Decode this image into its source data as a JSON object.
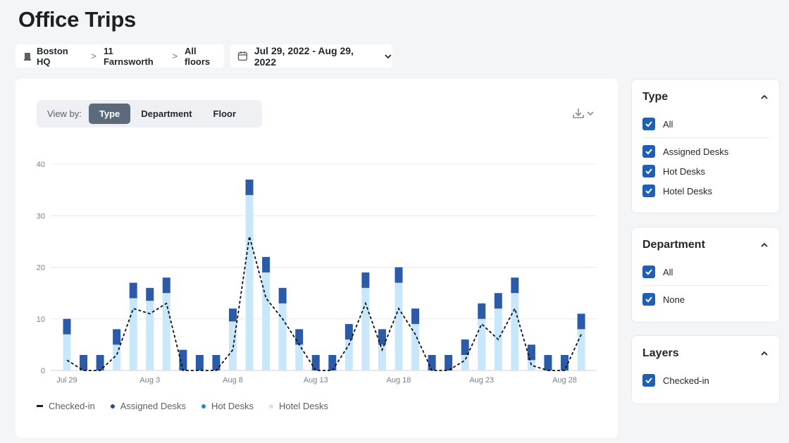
{
  "title": "Office Trips",
  "breadcrumb": [
    "Boston HQ",
    "11 Farnsworth",
    "All floors"
  ],
  "date_range": "Jul 29, 2022 - Aug 29, 2022",
  "view_by": {
    "label": "View by:",
    "options": [
      "Type",
      "Department",
      "Floor"
    ],
    "active": "Type"
  },
  "colors": {
    "assigned": "#2a5aa8",
    "hot": "#1b87d8",
    "hotel": "#c9e7fa",
    "line": "#111111",
    "checkbox": "#1f5fb4"
  },
  "chart_data": {
    "type": "bar",
    "stacked": true,
    "x": [
      "Jul 29",
      "Jul 30",
      "Jul 31",
      "Aug 1",
      "Aug 2",
      "Aug 3",
      "Aug 4",
      "Aug 5",
      "Aug 6",
      "Aug 7",
      "Aug 8",
      "Aug 9",
      "Aug 10",
      "Aug 11",
      "Aug 12",
      "Aug 13",
      "Aug 14",
      "Aug 15",
      "Aug 16",
      "Aug 17",
      "Aug 18",
      "Aug 19",
      "Aug 20",
      "Aug 21",
      "Aug 22",
      "Aug 23",
      "Aug 24",
      "Aug 25",
      "Aug 26",
      "Aug 27",
      "Aug 28",
      "Aug 29"
    ],
    "tick_labels": [
      "Jul 29",
      "Aug 3",
      "Aug 8",
      "Aug 13",
      "Aug 18",
      "Aug 23",
      "Aug 28"
    ],
    "y_ticks": [
      0,
      10,
      20,
      30,
      40
    ],
    "ylim": [
      0,
      40
    ],
    "grid": true,
    "legend_position": "bottom-left",
    "series": [
      {
        "name": "Hotel Desks",
        "color": "#c9e7fa",
        "values": [
          7,
          0,
          0,
          5,
          14,
          13.5,
          15,
          0,
          0,
          0,
          9.5,
          34,
          19,
          13,
          5,
          0,
          0,
          6,
          16,
          5,
          17,
          9,
          0,
          0,
          3,
          10,
          12,
          15,
          2,
          0,
          0,
          8
        ]
      },
      {
        "name": "Assigned Desks",
        "color": "#2a5aa8",
        "values": [
          3,
          3,
          3,
          3,
          3,
          2.5,
          3,
          4,
          3,
          3,
          2.5,
          3,
          3,
          3,
          3,
          3,
          3,
          3,
          3,
          3,
          3,
          3,
          3,
          3,
          3,
          3,
          3,
          3,
          3,
          3,
          3,
          3
        ]
      },
      {
        "name": "Hot Desks",
        "color": "#1b87d8",
        "values": [
          0,
          0,
          0,
          0,
          0,
          0,
          0,
          0,
          0,
          0,
          0,
          0,
          0,
          0,
          0,
          0,
          0,
          0,
          0,
          0,
          0,
          0,
          0,
          0,
          0,
          0,
          0,
          0,
          0,
          0,
          0,
          0
        ]
      },
      {
        "name": "Checked-in",
        "type": "line",
        "style": "dashed",
        "color": "#111111",
        "values": [
          2,
          0,
          0,
          3,
          12,
          11,
          13,
          0,
          0,
          0,
          4,
          26,
          14,
          10,
          5,
          0,
          0,
          5,
          13,
          4,
          12,
          7,
          0,
          0,
          2,
          9,
          6,
          12,
          1,
          0,
          0,
          7
        ]
      }
    ]
  },
  "legend": [
    {
      "label": "Checked-in",
      "kind": "dash",
      "color": "#111111"
    },
    {
      "label": "Assigned Desks",
      "kind": "dot",
      "color": "#2a4a8c"
    },
    {
      "label": "Hot Desks",
      "kind": "dot",
      "color": "#1b87d8"
    },
    {
      "label": "Hotel Desks",
      "kind": "dot",
      "color": "#c9e7fa"
    }
  ],
  "filters": {
    "type": {
      "title": "Type",
      "all_label": "All",
      "options": [
        "Assigned Desks",
        "Hot Desks",
        "Hotel Desks"
      ]
    },
    "department": {
      "title": "Department",
      "all_label": "All",
      "options": [
        "None"
      ]
    },
    "layers": {
      "title": "Layers",
      "options": [
        "Checked-in"
      ]
    }
  }
}
